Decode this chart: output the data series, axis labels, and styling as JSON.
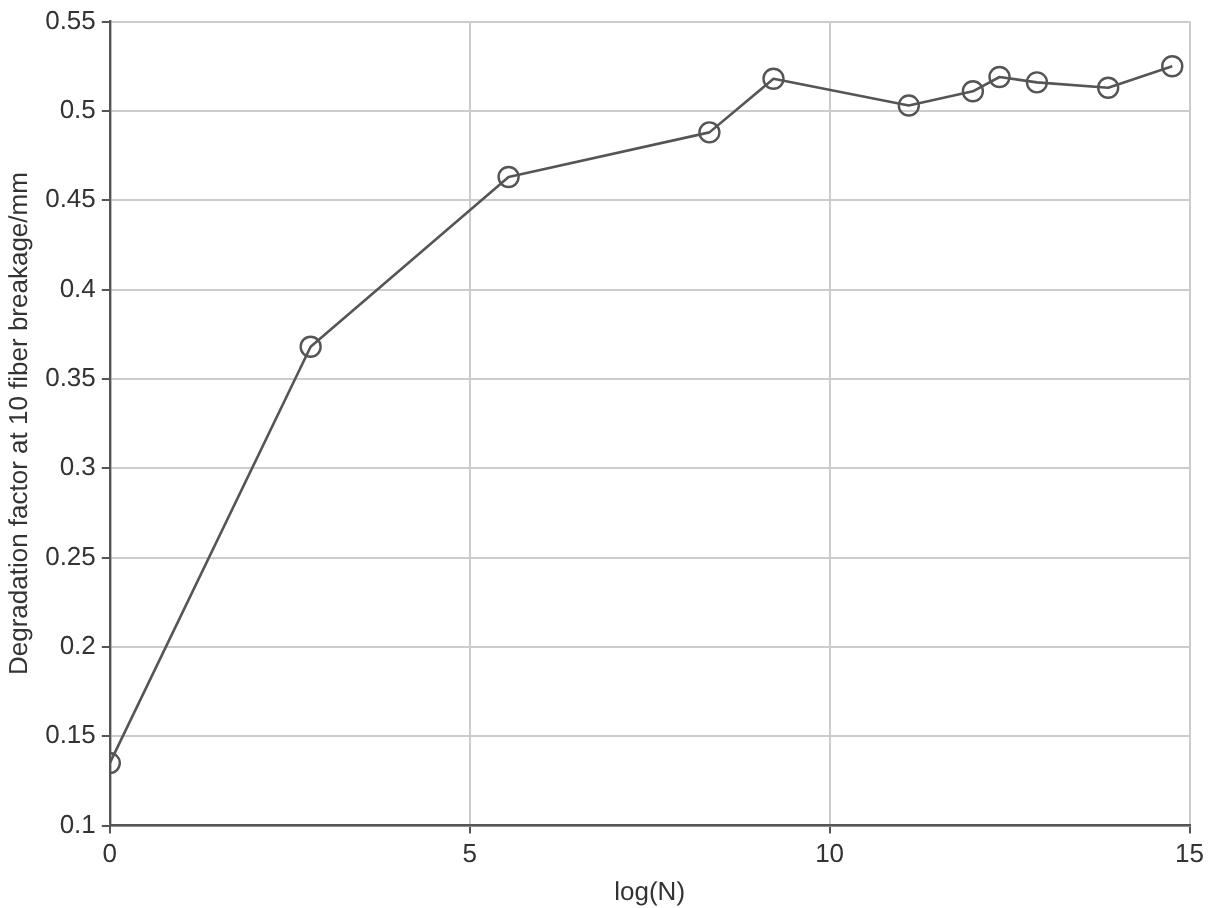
{
  "chart_data": {
    "type": "line",
    "xlabel": "log(N)",
    "ylabel": "Degradation factor at 10 fiber breakage/mm",
    "x": [
      0,
      2.79,
      5.54,
      8.33,
      9.22,
      11.1,
      11.99,
      12.36,
      12.88,
      13.87,
      14.76
    ],
    "series": [
      {
        "color": "#555555",
        "values": [
          0.135,
          0.368,
          0.463,
          0.488,
          0.518,
          0.503,
          0.511,
          0.519,
          0.516,
          0.513,
          0.525
        ]
      }
    ],
    "xlim": [
      0,
      15
    ],
    "xticks": [
      0,
      5,
      10,
      15
    ],
    "ylim": [
      0.1,
      0.55
    ],
    "yticks": [
      0.1,
      0.15,
      0.2,
      0.25,
      0.3,
      0.35,
      0.4,
      0.45,
      0.5,
      0.55
    ],
    "grid": true,
    "legend": false,
    "marker": "circle",
    "line_style": "solid"
  }
}
